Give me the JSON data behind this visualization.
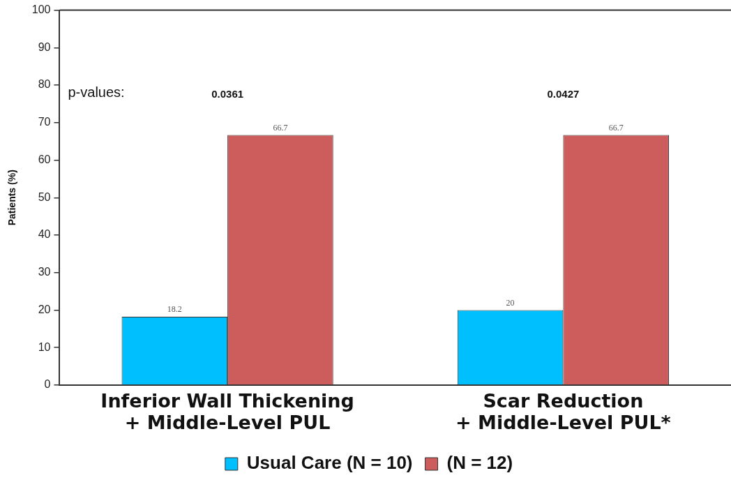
{
  "chart_data": {
    "type": "bar",
    "categories": [
      "Inferior Wall Thickening\n+ Middle-Level PUL",
      "Scar Reduction\n+ Middle-Level PUL*"
    ],
    "series": [
      {
        "name": "Usual Care (N = 10)",
        "color": "#00bfff",
        "values": [
          18.2,
          20
        ]
      },
      {
        "name": "(N = 12)",
        "color": "#cd5c5c",
        "values": [
          66.7,
          66.7
        ]
      }
    ],
    "ylabel": "Patients (%)",
    "ylim": [
      0,
      100
    ],
    "yticks": [
      0,
      10,
      20,
      30,
      40,
      50,
      60,
      70,
      80,
      90,
      100
    ],
    "grid": false,
    "legend": "bottom",
    "data_labels": true,
    "annotations": [
      "p-values:",
      "0.0361",
      "0.0427"
    ]
  }
}
